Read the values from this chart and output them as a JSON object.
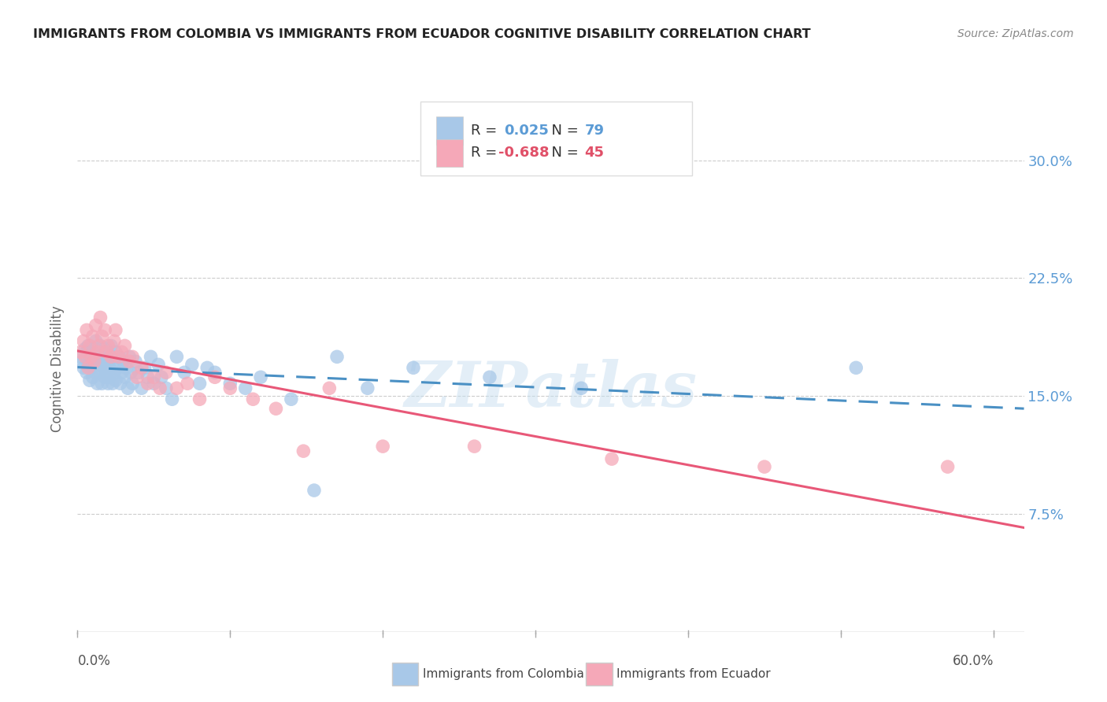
{
  "title": "IMMIGRANTS FROM COLOMBIA VS IMMIGRANTS FROM ECUADOR COGNITIVE DISABILITY CORRELATION CHART",
  "source": "Source: ZipAtlas.com",
  "ylabel": "Cognitive Disability",
  "ytick_labels": [
    "7.5%",
    "15.0%",
    "22.5%",
    "30.0%"
  ],
  "ytick_values": [
    0.075,
    0.15,
    0.225,
    0.3
  ],
  "xlim": [
    0.0,
    0.62
  ],
  "ylim": [
    0.0,
    0.335
  ],
  "r_colombia": 0.025,
  "n_colombia": 79,
  "r_ecuador": -0.688,
  "n_ecuador": 45,
  "color_colombia": "#a8c8e8",
  "color_ecuador": "#f5a8b8",
  "color_trendline_colombia": "#4a90c4",
  "color_trendline_ecuador": "#e85878",
  "legend_label_colombia": "Immigrants from Colombia",
  "legend_label_ecuador": "Immigrants from Ecuador",
  "watermark": "ZIPatlas",
  "colombia_x": [
    0.002,
    0.003,
    0.004,
    0.005,
    0.006,
    0.006,
    0.007,
    0.007,
    0.008,
    0.009,
    0.009,
    0.01,
    0.01,
    0.011,
    0.012,
    0.012,
    0.013,
    0.013,
    0.014,
    0.015,
    0.015,
    0.016,
    0.016,
    0.017,
    0.017,
    0.018,
    0.018,
    0.019,
    0.019,
    0.02,
    0.02,
    0.021,
    0.021,
    0.022,
    0.022,
    0.023,
    0.024,
    0.024,
    0.025,
    0.025,
    0.026,
    0.027,
    0.028,
    0.029,
    0.03,
    0.031,
    0.032,
    0.033,
    0.034,
    0.035,
    0.036,
    0.038,
    0.04,
    0.042,
    0.044,
    0.046,
    0.048,
    0.05,
    0.053,
    0.055,
    0.058,
    0.062,
    0.065,
    0.07,
    0.075,
    0.08,
    0.085,
    0.09,
    0.1,
    0.11,
    0.12,
    0.14,
    0.155,
    0.17,
    0.19,
    0.22,
    0.27,
    0.33,
    0.51
  ],
  "colombia_y": [
    0.175,
    0.172,
    0.168,
    0.18,
    0.165,
    0.178,
    0.17,
    0.182,
    0.16,
    0.175,
    0.168,
    0.162,
    0.178,
    0.172,
    0.165,
    0.185,
    0.158,
    0.175,
    0.17,
    0.165,
    0.182,
    0.158,
    0.175,
    0.172,
    0.168,
    0.162,
    0.178,
    0.165,
    0.18,
    0.158,
    0.172,
    0.168,
    0.162,
    0.175,
    0.182,
    0.158,
    0.172,
    0.165,
    0.16,
    0.178,
    0.168,
    0.175,
    0.158,
    0.165,
    0.172,
    0.162,
    0.168,
    0.155,
    0.175,
    0.165,
    0.158,
    0.172,
    0.165,
    0.155,
    0.168,
    0.162,
    0.175,
    0.158,
    0.17,
    0.162,
    0.155,
    0.148,
    0.175,
    0.165,
    0.17,
    0.158,
    0.168,
    0.165,
    0.158,
    0.155,
    0.162,
    0.148,
    0.09,
    0.175,
    0.155,
    0.168,
    0.162,
    0.155,
    0.168
  ],
  "ecuador_x": [
    0.002,
    0.004,
    0.005,
    0.006,
    0.007,
    0.008,
    0.009,
    0.01,
    0.011,
    0.012,
    0.013,
    0.014,
    0.015,
    0.016,
    0.018,
    0.019,
    0.02,
    0.022,
    0.024,
    0.025,
    0.027,
    0.029,
    0.031,
    0.034,
    0.036,
    0.039,
    0.042,
    0.046,
    0.05,
    0.054,
    0.058,
    0.065,
    0.072,
    0.08,
    0.09,
    0.1,
    0.115,
    0.13,
    0.148,
    0.165,
    0.2,
    0.26,
    0.35,
    0.45,
    0.57
  ],
  "ecuador_y": [
    0.178,
    0.185,
    0.175,
    0.192,
    0.168,
    0.182,
    0.175,
    0.188,
    0.172,
    0.195,
    0.178,
    0.182,
    0.2,
    0.188,
    0.192,
    0.178,
    0.182,
    0.175,
    0.185,
    0.192,
    0.175,
    0.178,
    0.182,
    0.172,
    0.175,
    0.162,
    0.168,
    0.158,
    0.162,
    0.155,
    0.165,
    0.155,
    0.158,
    0.148,
    0.162,
    0.155,
    0.148,
    0.142,
    0.115,
    0.155,
    0.118,
    0.118,
    0.11,
    0.105,
    0.105
  ]
}
